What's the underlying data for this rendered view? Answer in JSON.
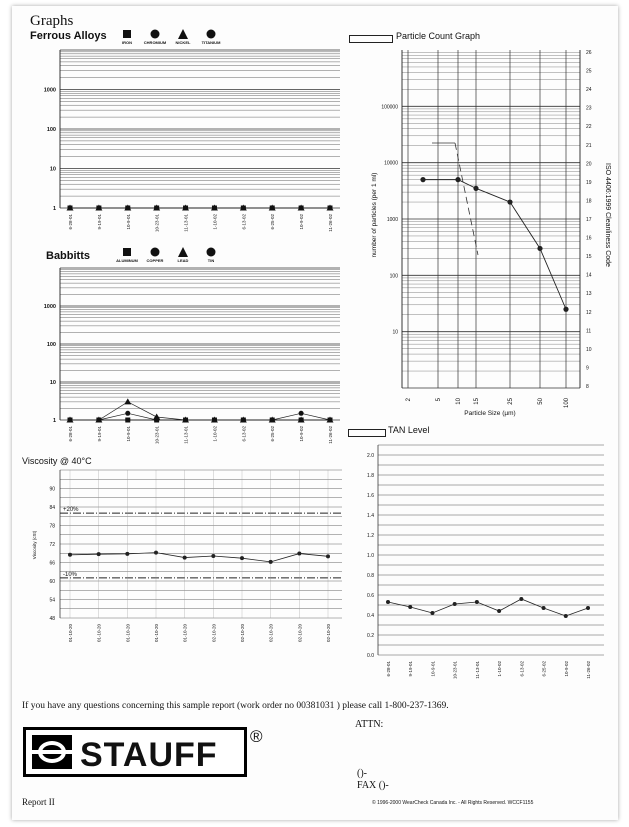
{
  "header": {
    "title": "Graphs"
  },
  "ferrous": {
    "heading": "Ferrous Alloys",
    "legend": [
      {
        "label": "IRON",
        "marker": "square"
      },
      {
        "label": "CHROMIUM",
        "marker": "circle"
      },
      {
        "label": "NICKEL",
        "marker": "triangle"
      },
      {
        "label": "TITANIUM",
        "marker": "circle"
      }
    ],
    "y_ticks": [
      "1000",
      "100",
      "10",
      "1"
    ],
    "x_ticks": [
      "6-28-01",
      "9-19-01",
      "10-9-01",
      "10-23-01",
      "11-13-01",
      "1-10-02",
      "6-13-02",
      "6-25-02",
      "10-9-02",
      "11-26-02"
    ]
  },
  "babbitts": {
    "heading": "Babbitts",
    "legend": [
      {
        "label": "ALUMINUM",
        "marker": "square"
      },
      {
        "label": "COPPER",
        "marker": "circle"
      },
      {
        "label": "LEAD",
        "marker": "triangle"
      },
      {
        "label": "TIN",
        "marker": "circle"
      }
    ],
    "y_ticks": [
      "1000",
      "100",
      "10",
      "1"
    ],
    "x_ticks": [
      "6-28-01",
      "9-19-01",
      "10-9-01",
      "10-23-01",
      "11-13-01",
      "1-10-02",
      "6-13-02",
      "6-25-02",
      "10-9-02",
      "11-26-02"
    ]
  },
  "particle": {
    "title": "Particle Count Graph",
    "ylabel": "number of particles (per 1 ml)",
    "y2label": "ISO 4406:1999 Cleanliness Code",
    "xlabel": "Particle Size (µm)",
    "y_ticks": [
      "100000",
      "10000",
      "1000",
      "100",
      "10",
      "1"
    ],
    "iso_ticks": [
      "26",
      "25",
      "24",
      "23",
      "22",
      "21",
      "20",
      "19",
      "18",
      "17",
      "16",
      "15",
      "14",
      "13",
      "12",
      "11",
      "10",
      "9",
      "8"
    ],
    "x_ticks": [
      "2",
      "5",
      "10",
      "15",
      "25",
      "50",
      "100"
    ]
  },
  "viscosity": {
    "title": "Viscosity @ 40°C",
    "ylabel": "Viscosity (cSt)",
    "y_ticks": [
      "90",
      "84",
      "78",
      "72",
      "66",
      "60",
      "54",
      "48"
    ],
    "upper_label": "+20%",
    "lower_label": "-10%",
    "x_ticks": [
      "01-10-20",
      "01-10-20",
      "01-10-20",
      "01-10-20",
      "01-10-20",
      "02-10-20",
      "02-10-20",
      "02-10-20",
      "02-10-20",
      "02-10-20"
    ]
  },
  "tan": {
    "title": "TAN Level",
    "y_ticks": [
      "2.0",
      "1.8",
      "1.6",
      "1.4",
      "1.2",
      "1.0",
      "0.8",
      "0.6",
      "0.4",
      "0.2",
      "0.0"
    ],
    "x_ticks": [
      "6-28-01",
      "9-19-01",
      "10-9-01",
      "10-23-01",
      "11-13-01",
      "1-10-02",
      "6-13-02",
      "6-25-02",
      "10-9-02",
      "11-26-02"
    ]
  },
  "chart_data": [
    {
      "type": "line",
      "title": "Ferrous Alloys",
      "ylim": [
        1,
        10000
      ],
      "scale": "log",
      "categories": [
        "6-28-01",
        "9-19-01",
        "10-9-01",
        "10-23-01",
        "11-13-01",
        "1-10-02",
        "6-13-02",
        "6-25-02",
        "10-9-02",
        "11-26-02"
      ],
      "series": [
        {
          "name": "IRON",
          "values": [
            1,
            1,
            1,
            1,
            1,
            1,
            1,
            1,
            1,
            1
          ]
        },
        {
          "name": "CHROMIUM",
          "values": [
            1,
            1,
            1,
            1,
            1,
            1,
            1,
            1,
            1,
            1
          ]
        },
        {
          "name": "NICKEL",
          "values": [
            1,
            1,
            1,
            1,
            1,
            1,
            1,
            1,
            1,
            1
          ]
        },
        {
          "name": "TITANIUM",
          "values": [
            1,
            1,
            1,
            1,
            1,
            1,
            1,
            1,
            1,
            1
          ]
        }
      ]
    },
    {
      "type": "line",
      "title": "Babbitts",
      "ylim": [
        1,
        10000
      ],
      "scale": "log",
      "categories": [
        "6-28-01",
        "9-19-01",
        "10-9-01",
        "10-23-01",
        "11-13-01",
        "1-10-02",
        "6-13-02",
        "6-25-02",
        "10-9-02",
        "11-26-02"
      ],
      "series": [
        {
          "name": "ALUMINUM",
          "values": [
            1,
            1,
            1,
            1,
            1,
            1,
            1,
            1,
            1,
            1
          ]
        },
        {
          "name": "COPPER",
          "values": [
            1,
            1,
            1.5,
            1,
            1,
            1,
            1,
            1,
            1.5,
            1
          ]
        },
        {
          "name": "LEAD",
          "values": [
            1,
            1,
            3,
            1.2,
            1,
            1,
            1,
            1,
            1,
            1
          ]
        },
        {
          "name": "TIN",
          "values": [
            1,
            1,
            1,
            1,
            1,
            1,
            1,
            1,
            1,
            1
          ]
        }
      ]
    },
    {
      "type": "line",
      "title": "Particle Count Graph",
      "scale": "log",
      "ylim": [
        1,
        1000000
      ],
      "x": [
        2,
        5,
        10,
        15,
        25,
        50,
        100
      ],
      "series": [
        {
          "values": [
            null,
            5000,
            5000,
            3500,
            2000,
            300,
            25
          ]
        }
      ]
    },
    {
      "type": "line",
      "title": "Viscosity @ 40°C",
      "ylim": [
        48,
        96
      ],
      "categories": [
        "01-10-20",
        "01-10-20",
        "01-10-20",
        "01-10-20",
        "01-10-20",
        "02-10-20",
        "02-10-20",
        "02-10-20",
        "02-10-20",
        "02-10-20"
      ],
      "series": [
        {
          "values": [
            68.5,
            68.7,
            68.8,
            69.2,
            67.6,
            68.1,
            67.4,
            66.2,
            68.9,
            68.0
          ]
        }
      ],
      "reference_lines": {
        "upper": 82,
        "lower": 61
      }
    },
    {
      "type": "line",
      "title": "TAN Level",
      "ylim": [
        0,
        2.1
      ],
      "categories": [
        "6-28-01",
        "9-19-01",
        "10-9-01",
        "10-23-01",
        "11-13-01",
        "1-10-02",
        "6-13-02",
        "6-25-02",
        "10-9-02",
        "11-26-02"
      ],
      "series": [
        {
          "values": [
            0.53,
            0.48,
            0.42,
            0.51,
            0.53,
            0.44,
            0.56,
            0.47,
            0.39,
            0.47
          ]
        }
      ]
    }
  ],
  "footer": {
    "question": "If you have any questions concerning this sample report (work order no 00381031 ) please call 1-800-237-1369.",
    "attn": "ATTN:",
    "phone": "()-",
    "fax": "FAX ()-",
    "report": "Report II",
    "copyright": "© 1996-2000 WearCheck Canada Inc. - All Rights Reserved. WCCF1155",
    "logo_text": "STAUFF",
    "registered": "®"
  }
}
